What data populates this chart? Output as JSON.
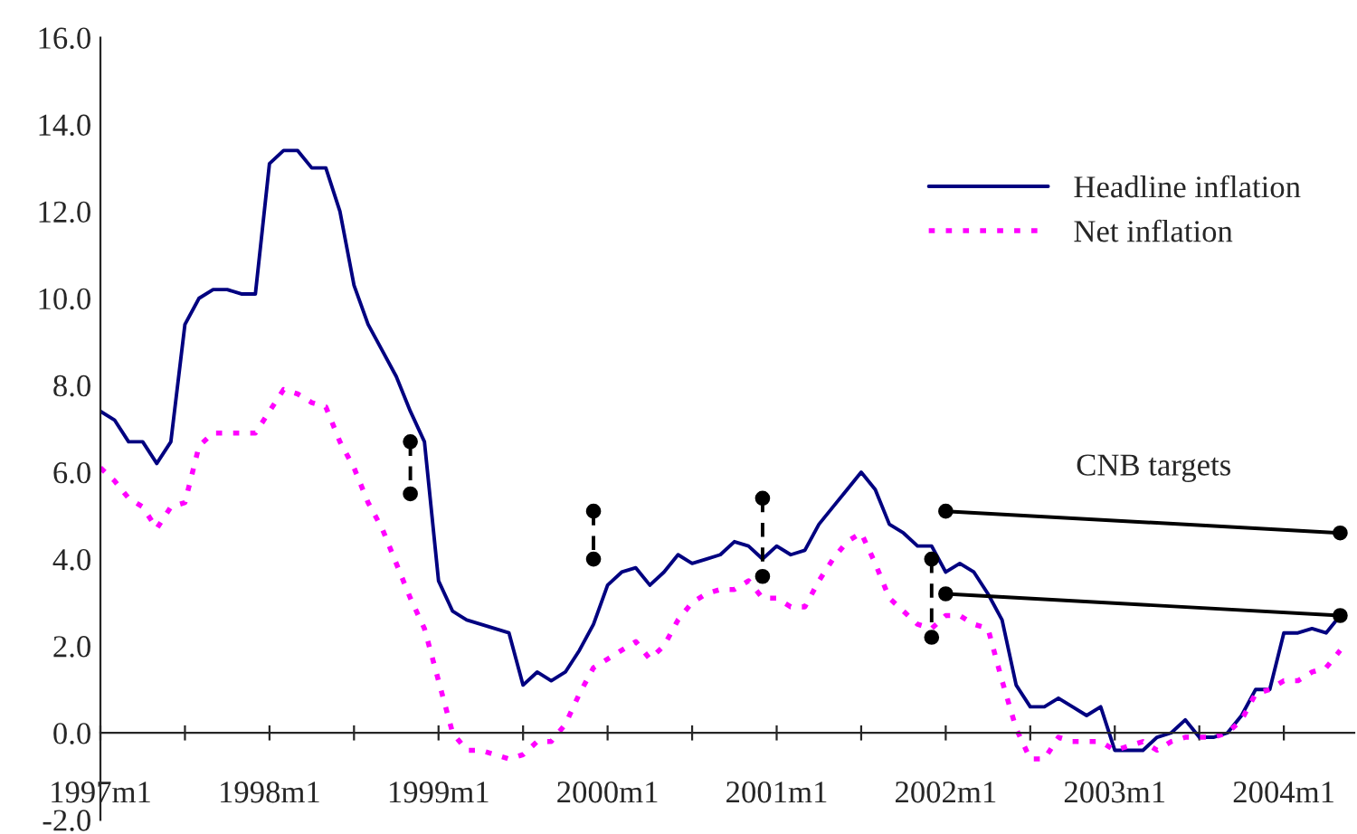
{
  "chart_data": {
    "type": "line",
    "x": [
      "1997-01",
      "1997-02",
      "1997-03",
      "1997-04",
      "1997-05",
      "1997-06",
      "1997-07",
      "1997-08",
      "1997-09",
      "1997-10",
      "1997-11",
      "1997-12",
      "1998-01",
      "1998-02",
      "1998-03",
      "1998-04",
      "1998-05",
      "1998-06",
      "1998-07",
      "1998-08",
      "1998-09",
      "1998-10",
      "1998-11",
      "1998-12",
      "1999-01",
      "1999-02",
      "1999-03",
      "1999-04",
      "1999-05",
      "1999-06",
      "1999-07",
      "1999-08",
      "1999-09",
      "1999-10",
      "1999-11",
      "1999-12",
      "2000-01",
      "2000-02",
      "2000-03",
      "2000-04",
      "2000-05",
      "2000-06",
      "2000-07",
      "2000-08",
      "2000-09",
      "2000-10",
      "2000-11",
      "2000-12",
      "2001-01",
      "2001-02",
      "2001-03",
      "2001-04",
      "2001-05",
      "2001-06",
      "2001-07",
      "2001-08",
      "2001-09",
      "2001-10",
      "2001-11",
      "2001-12",
      "2002-01",
      "2002-02",
      "2002-03",
      "2002-04",
      "2002-05",
      "2002-06",
      "2002-07",
      "2002-08",
      "2002-09",
      "2002-10",
      "2002-11",
      "2002-12",
      "2003-01",
      "2003-02",
      "2003-03",
      "2003-04",
      "2003-05",
      "2003-06",
      "2003-07",
      "2003-08",
      "2003-09",
      "2003-10",
      "2003-11",
      "2003-12",
      "2004-01",
      "2004-02",
      "2004-03",
      "2004-04",
      "2004-05"
    ],
    "series": [
      {
        "name": "Headline inflation",
        "color": "#000080",
        "line_style": "solid",
        "marker": "none",
        "values": [
          7.4,
          7.2,
          6.7,
          6.7,
          6.2,
          6.7,
          9.4,
          10.0,
          10.2,
          10.2,
          10.1,
          10.1,
          13.1,
          13.4,
          13.4,
          13.0,
          13.0,
          12.0,
          10.3,
          9.4,
          8.8,
          8.2,
          7.4,
          6.7,
          3.5,
          2.8,
          2.6,
          2.5,
          2.4,
          2.3,
          1.1,
          1.4,
          1.2,
          1.4,
          1.9,
          2.5,
          3.4,
          3.7,
          3.8,
          3.4,
          3.7,
          4.1,
          3.9,
          4.0,
          4.1,
          4.4,
          4.3,
          4.0,
          4.3,
          4.1,
          4.2,
          4.8,
          5.2,
          5.6,
          6.0,
          5.6,
          4.8,
          4.6,
          4.3,
          4.3,
          3.7,
          3.9,
          3.7,
          3.2,
          2.6,
          1.1,
          0.6,
          0.6,
          0.8,
          0.6,
          0.4,
          0.6,
          -0.4,
          -0.4,
          -0.4,
          -0.1,
          0.0,
          0.3,
          -0.1,
          -0.1,
          0.0,
          0.4,
          1.0,
          1.0,
          2.3,
          2.3,
          2.4,
          2.3,
          2.7
        ]
      },
      {
        "name": "Net inflation",
        "color": "#ff00ff",
        "line_style": "dotted",
        "marker": "none",
        "values": [
          6.1,
          5.8,
          5.4,
          5.2,
          4.7,
          5.2,
          5.3,
          6.6,
          6.9,
          6.9,
          6.9,
          6.9,
          7.4,
          7.9,
          7.8,
          7.6,
          7.5,
          6.7,
          6.1,
          5.3,
          4.7,
          3.9,
          3.1,
          2.4,
          1.2,
          0.0,
          -0.4,
          -0.4,
          -0.5,
          -0.6,
          -0.5,
          -0.2,
          -0.2,
          0.2,
          0.9,
          1.5,
          1.7,
          1.9,
          2.1,
          1.7,
          2.0,
          2.6,
          3.0,
          3.2,
          3.3,
          3.3,
          3.5,
          3.1,
          3.1,
          2.9,
          2.9,
          3.5,
          4.0,
          4.4,
          4.6,
          3.9,
          3.1,
          2.8,
          2.5,
          2.4,
          2.7,
          2.7,
          2.5,
          2.4,
          1.2,
          0.1,
          -0.6,
          -0.6,
          -0.1,
          -0.2,
          -0.2,
          -0.2,
          -0.4,
          -0.3,
          -0.2,
          -0.4,
          -0.2,
          -0.1,
          -0.1,
          -0.1,
          0.0,
          0.3,
          0.9,
          1.0,
          1.2,
          1.2,
          1.4,
          1.5,
          1.9
        ]
      },
      {
        "color": "#000000",
        "line_style": "dashed",
        "marker": "circle",
        "x": [
          "1998-11",
          "1998-11"
        ],
        "values": [
          6.7,
          5.5
        ]
      },
      {
        "color": "#000000",
        "line_style": "dashed",
        "marker": "circle",
        "x": [
          "1999-12",
          "1999-12"
        ],
        "values": [
          5.1,
          4.0
        ]
      },
      {
        "color": "#000000",
        "line_style": "dashed",
        "marker": "circle",
        "x": [
          "2000-12",
          "2000-12"
        ],
        "values": [
          5.4,
          3.6
        ]
      },
      {
        "color": "#000000",
        "line_style": "dashed",
        "marker": "circle",
        "x": [
          "2001-12",
          "2001-12"
        ],
        "values": [
          4.0,
          2.2
        ]
      },
      {
        "color": "#000000",
        "line_style": "solid",
        "marker": "circle",
        "x": [
          "2002-01",
          "2004-05"
        ],
        "values": [
          5.1,
          4.6
        ]
      },
      {
        "color": "#000000",
        "line_style": "solid",
        "marker": "circle",
        "x": [
          "2002-01",
          "2004-05"
        ],
        "values": [
          3.2,
          2.7
        ]
      }
    ],
    "xlim": [
      "1997-01",
      "2004-06"
    ],
    "xticks": [
      {
        "value": "1997-01",
        "label": "1997m1"
      },
      {
        "value": "1997-07",
        "label": null
      },
      {
        "value": "1998-01",
        "label": "1998m1"
      },
      {
        "value": "1998-07",
        "label": null
      },
      {
        "value": "1999-01",
        "label": "1999m1"
      },
      {
        "value": "1999-07",
        "label": null
      },
      {
        "value": "2000-01",
        "label": "2000m1"
      },
      {
        "value": "2000-07",
        "label": null
      },
      {
        "value": "2001-01",
        "label": "2001m1"
      },
      {
        "value": "2001-07",
        "label": null
      },
      {
        "value": "2002-01",
        "label": "2002m1"
      },
      {
        "value": "2002-07",
        "label": null
      },
      {
        "value": "2003-01",
        "label": "2003m1"
      },
      {
        "value": "2003-07",
        "label": null
      },
      {
        "value": "2004-01",
        "label": "2004m1"
      }
    ],
    "ylim": [
      -2,
      16
    ],
    "yticks": [
      {
        "value": -2,
        "label": "-2.0"
      },
      {
        "value": 0,
        "label": "0.0"
      },
      {
        "value": 2,
        "label": "2.0"
      },
      {
        "value": 4,
        "label": "4.0"
      },
      {
        "value": 6,
        "label": "6.0"
      },
      {
        "value": 8,
        "label": "8.0"
      },
      {
        "value": 10,
        "label": "10.0"
      },
      {
        "value": 12,
        "label": "12.0"
      },
      {
        "value": 14,
        "label": "14.0"
      },
      {
        "value": 16,
        "label": "16.0"
      }
    ],
    "annotations": [
      "CNB targets"
    ],
    "legend": "top right",
    "grid": false
  }
}
